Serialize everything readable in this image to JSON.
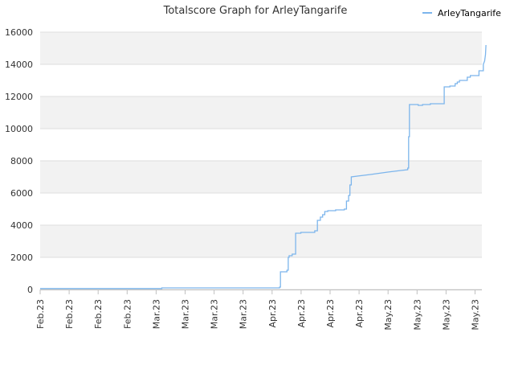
{
  "chart_data": {
    "type": "line",
    "title": "Totalscore Graph for ArleyTangarife",
    "xlabel": "",
    "ylabel": "",
    "ylim": [
      0,
      16000
    ],
    "yticks": [
      0,
      2000,
      4000,
      6000,
      8000,
      10000,
      12000,
      14000,
      16000
    ],
    "ytick_labels": [
      "0",
      "2000",
      "4000",
      "6000",
      "8000",
      "10000",
      "12000",
      "14000",
      "16000"
    ],
    "xtick_labels": [
      "Feb.23",
      "Feb.23",
      "Feb.23",
      "Feb.23",
      "Mar.23",
      "Mar.23",
      "Mar.23",
      "Mar.23",
      "Apr.23",
      "Apr.23",
      "Apr.23",
      "Apr.23",
      "May.23",
      "May.23",
      "May.23",
      "May.23"
    ],
    "xlim": [
      0,
      1
    ],
    "grid": "horizontal bands",
    "legend_position": "top-right",
    "series_color": "#7cb5ec",
    "series": [
      {
        "name": "ArleyTangarife",
        "points": [
          [
            0.0,
            60
          ],
          [
            0.28,
            60
          ],
          [
            0.28,
            100
          ],
          [
            0.551,
            100
          ],
          [
            0.551,
            150
          ],
          [
            0.553,
            150
          ],
          [
            0.553,
            1100
          ],
          [
            0.568,
            1100
          ],
          [
            0.568,
            1200
          ],
          [
            0.571,
            1200
          ],
          [
            0.571,
            2000
          ],
          [
            0.573,
            2000
          ],
          [
            0.573,
            2100
          ],
          [
            0.58,
            2100
          ],
          [
            0.58,
            2200
          ],
          [
            0.588,
            2200
          ],
          [
            0.588,
            3500
          ],
          [
            0.6,
            3500
          ],
          [
            0.6,
            3550
          ],
          [
            0.632,
            3550
          ],
          [
            0.632,
            3650
          ],
          [
            0.638,
            3650
          ],
          [
            0.638,
            4300
          ],
          [
            0.645,
            4300
          ],
          [
            0.645,
            4500
          ],
          [
            0.65,
            4500
          ],
          [
            0.65,
            4650
          ],
          [
            0.655,
            4650
          ],
          [
            0.655,
            4850
          ],
          [
            0.662,
            4850
          ],
          [
            0.662,
            4900
          ],
          [
            0.68,
            4900
          ],
          [
            0.68,
            4950
          ],
          [
            0.7,
            4950
          ],
          [
            0.7,
            5000
          ],
          [
            0.705,
            5000
          ],
          [
            0.705,
            5500
          ],
          [
            0.71,
            5500
          ],
          [
            0.71,
            5850
          ],
          [
            0.713,
            5850
          ],
          [
            0.713,
            6500
          ],
          [
            0.716,
            6500
          ],
          [
            0.716,
            7000
          ],
          [
            0.73,
            7050
          ],
          [
            0.76,
            7150
          ],
          [
            0.8,
            7300
          ],
          [
            0.83,
            7400
          ],
          [
            0.846,
            7450
          ],
          [
            0.846,
            7550
          ],
          [
            0.848,
            7550
          ],
          [
            0.848,
            9500
          ],
          [
            0.85,
            9500
          ],
          [
            0.85,
            11500
          ],
          [
            0.87,
            11500
          ],
          [
            0.87,
            11450
          ],
          [
            0.88,
            11450
          ],
          [
            0.88,
            11500
          ],
          [
            0.898,
            11500
          ],
          [
            0.898,
            11550
          ],
          [
            0.93,
            11550
          ],
          [
            0.93,
            12600
          ],
          [
            0.943,
            12600
          ],
          [
            0.943,
            12650
          ],
          [
            0.955,
            12650
          ],
          [
            0.955,
            12800
          ],
          [
            0.96,
            12800
          ],
          [
            0.96,
            12900
          ],
          [
            0.965,
            12900
          ],
          [
            0.965,
            13000
          ],
          [
            0.983,
            13000
          ],
          [
            0.983,
            13200
          ],
          [
            0.99,
            13200
          ],
          [
            0.99,
            13300
          ],
          [
            1.01,
            13300
          ],
          [
            1.01,
            13600
          ],
          [
            1.02,
            13600
          ],
          [
            1.02,
            14000
          ],
          [
            1.023,
            14200
          ],
          [
            1.025,
            14600
          ],
          [
            1.026,
            15200
          ]
        ]
      }
    ]
  }
}
